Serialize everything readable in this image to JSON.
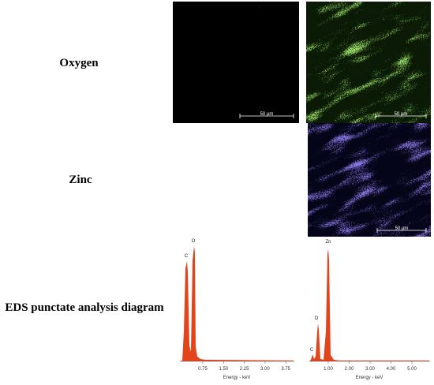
{
  "rows": [
    {
      "label": "Oxygen"
    },
    {
      "label": "Zinc"
    },
    {
      "label": "EDS punctate analysis diagram"
    }
  ],
  "maps": [
    {
      "scale_bar": "50 µm"
    },
    {
      "scale_bar": "50 µm"
    },
    {
      "scale_bar": "50 µm"
    }
  ],
  "spectra": [
    {
      "peaks": [
        "C",
        "O"
      ],
      "ticks": [
        "0.75",
        "1.50",
        "2.25",
        "3.00",
        "3.75"
      ],
      "axis_label": "Energy - keV"
    },
    {
      "peaks": [
        "C",
        "O",
        "Zn"
      ],
      "ticks": [
        "1.00",
        "2.00",
        "3.00",
        "4.00",
        "5.00"
      ],
      "axis_label": "Energy - keV"
    }
  ]
}
